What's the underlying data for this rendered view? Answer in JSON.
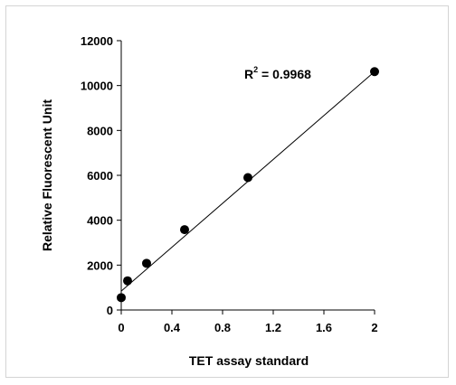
{
  "chart_data": {
    "type": "scatter",
    "xlabel": "TET assay standard",
    "ylabel": "Relative Fluorescent Unit",
    "xlim": [
      0,
      2
    ],
    "ylim": [
      0,
      12000
    ],
    "x_ticks": [
      "0",
      "0.4",
      "0.8",
      "1.2",
      "1.6",
      "2"
    ],
    "y_ticks": [
      "0",
      "2000",
      "4000",
      "6000",
      "8000",
      "10000",
      "12000"
    ],
    "grid": false,
    "legend": "none",
    "series": [
      {
        "x": [
          0,
          0.05,
          0.2,
          0.5,
          1.0,
          2.0
        ],
        "y": [
          550,
          1300,
          2080,
          3580,
          5900,
          10620
        ]
      }
    ],
    "trendline": {
      "type": "linear",
      "x": [
        0,
        2
      ],
      "y": [
        840,
        10620
      ]
    },
    "annotation": {
      "base": "R",
      "sup": "2",
      "rest": " = 0.9968"
    },
    "colors": {
      "marker": "#000000",
      "line": "#000000",
      "frame": "#d4d4d4"
    }
  }
}
